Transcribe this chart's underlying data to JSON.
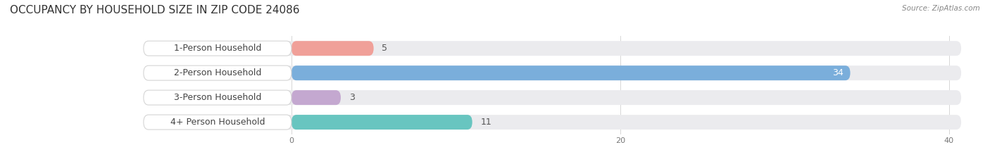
{
  "title": "OCCUPANCY BY HOUSEHOLD SIZE IN ZIP CODE 24086",
  "source": "Source: ZipAtlas.com",
  "categories": [
    "1-Person Household",
    "2-Person Household",
    "3-Person Household",
    "4+ Person Household"
  ],
  "values": [
    5,
    34,
    3,
    11
  ],
  "bar_colors": [
    "#f0a099",
    "#7aaedb",
    "#c4a8d0",
    "#68c5c0"
  ],
  "bg_bar_color": "#ebebee",
  "label_bg_color": "#ffffff",
  "xlim_max": 40,
  "xticks": [
    0,
    20,
    40
  ],
  "title_fontsize": 11,
  "label_fontsize": 9,
  "value_fontsize": 9,
  "background_color": "#ffffff",
  "bar_height": 0.6,
  "value_34_color": "#ffffff",
  "value_other_color": "#555555"
}
